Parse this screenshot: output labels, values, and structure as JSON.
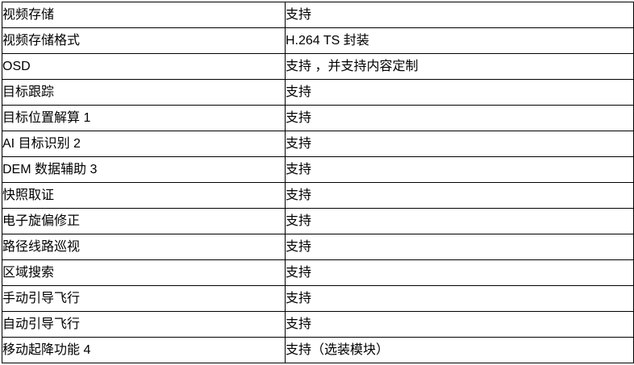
{
  "colors": {
    "border": "#000000",
    "text": "#000000",
    "background": "#ffffff"
  },
  "table": {
    "rows": [
      {
        "feature": "视频存储",
        "value": "支持"
      },
      {
        "feature": "视频存储格式",
        "value": "H.264 TS 封装"
      },
      {
        "feature": "OSD",
        "value": "支持 ，并支持内容定制"
      },
      {
        "feature": "目标跟踪",
        "value": "支持"
      },
      {
        "feature": "目标位置解算 1",
        "value": "支持"
      },
      {
        "feature": "AI 目标识别 2",
        "value": "支持"
      },
      {
        "feature": "DEM 数据辅助 3",
        "value": "支持"
      },
      {
        "feature": "快照取证",
        "value": "支持"
      },
      {
        "feature": "电子旋偏修正",
        "value": "支持"
      },
      {
        "feature": "路径线路巡视",
        "value": "支持"
      },
      {
        "feature": "区域搜索",
        "value": "支持"
      },
      {
        "feature": "手动引导飞行",
        "value": "支持"
      },
      {
        "feature": "自动引导飞行",
        "value": "支持"
      },
      {
        "feature": "移动起降功能 4",
        "value": "支持（选装模块）"
      }
    ]
  }
}
